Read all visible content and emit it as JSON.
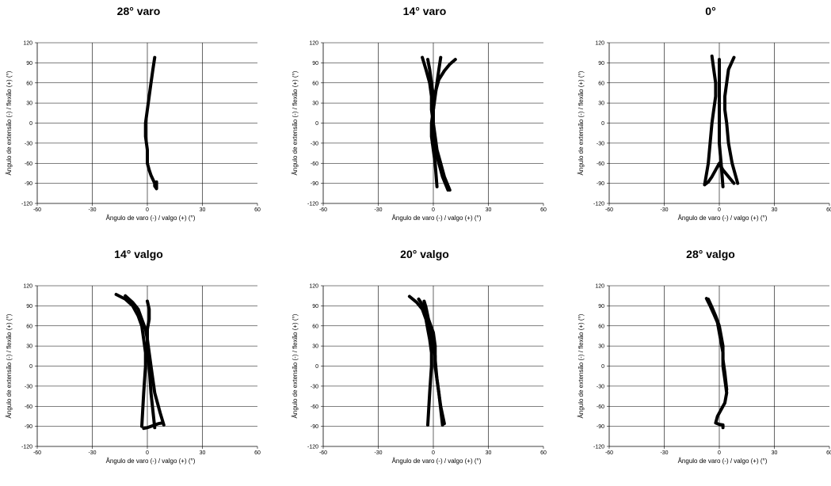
{
  "chart_data": [
    {
      "type": "line",
      "title": "28° varo",
      "xlabel": "Ângulo de varo (-) / valgo (+) (°)",
      "ylabel": "Ângulo de extensão (-) / flexão (+) (°)",
      "xlim": [
        -60,
        60
      ],
      "ylim": [
        -120,
        120
      ],
      "xticks": [
        -60,
        -30,
        0,
        30,
        60
      ],
      "yticks": [
        -120,
        -90,
        -60,
        -30,
        0,
        30,
        60,
        90,
        120
      ],
      "grid": true,
      "series": [
        {
          "x": [
            4,
            3,
            2,
            1,
            0,
            -1,
            -1,
            0,
            0,
            1,
            2,
            3,
            4,
            4,
            5,
            5,
            5
          ],
          "y": [
            98,
            80,
            60,
            40,
            20,
            0,
            -20,
            -40,
            -60,
            -70,
            -78,
            -84,
            -90,
            -94,
            -98,
            -94,
            -88
          ]
        }
      ]
    },
    {
      "type": "line",
      "title": "14° varo",
      "xlabel": "Ângulo de varo (-) / valgo (+) (°)",
      "ylabel": "Ângulo de extensão (-) / flexão (+) (°)",
      "xlim": [
        -60,
        60
      ],
      "ylim": [
        -120,
        120
      ],
      "xticks": [
        -60,
        -30,
        0,
        30,
        60
      ],
      "yticks": [
        -120,
        -90,
        -60,
        -30,
        0,
        30,
        60,
        90,
        120
      ],
      "grid": true,
      "series": [
        {
          "x": [
            -6,
            -4,
            -2,
            -1,
            -1,
            0,
            0,
            1,
            3,
            5,
            8
          ],
          "y": [
            98,
            80,
            60,
            40,
            20,
            0,
            -20,
            -40,
            -60,
            -80,
            -100
          ]
        },
        {
          "x": [
            4,
            3,
            2,
            1,
            0,
            0,
            1,
            2,
            4,
            6,
            9
          ],
          "y": [
            98,
            80,
            60,
            40,
            20,
            0,
            -20,
            -40,
            -60,
            -80,
            -100
          ]
        },
        {
          "x": [
            12,
            9,
            6,
            3,
            1,
            0
          ],
          "y": [
            95,
            88,
            78,
            65,
            45,
            20
          ]
        },
        {
          "x": [
            -3,
            -2,
            -1,
            0,
            0,
            -1,
            -1,
            0,
            1,
            2
          ],
          "y": [
            95,
            80,
            60,
            40,
            20,
            0,
            -20,
            -40,
            -60,
            -95
          ]
        }
      ]
    },
    {
      "type": "line",
      "title": "0°",
      "xlabel": "Ângulo de varo (-) / valgo (+) (°)",
      "ylabel": "Ângulo de extensão (-) / flexão (+) (°)",
      "xlim": [
        -60,
        60
      ],
      "ylim": [
        -120,
        120
      ],
      "xticks": [
        -60,
        -30,
        0,
        30,
        60
      ],
      "yticks": [
        -120,
        -90,
        -60,
        -30,
        0,
        30,
        60,
        90,
        120
      ],
      "grid": true,
      "series": [
        {
          "x": [
            -4,
            -3,
            -2,
            -2,
            -3,
            -4,
            -5,
            -6,
            -8
          ],
          "y": [
            100,
            80,
            60,
            40,
            20,
            0,
            -30,
            -60,
            -92
          ]
        },
        {
          "x": [
            8,
            5,
            4,
            3,
            3,
            4,
            5,
            7,
            10
          ],
          "y": [
            98,
            80,
            60,
            40,
            20,
            0,
            -30,
            -60,
            -90
          ]
        },
        {
          "x": [
            0,
            0,
            0,
            0,
            0,
            0,
            0,
            1,
            2
          ],
          "y": [
            95,
            80,
            60,
            40,
            20,
            0,
            -30,
            -60,
            -95
          ]
        },
        {
          "x": [
            -8,
            -6,
            -4,
            -2,
            0,
            2,
            5,
            8
          ],
          "y": [
            -92,
            -88,
            -80,
            -70,
            -60,
            -70,
            -80,
            -90
          ]
        }
      ]
    },
    {
      "type": "line",
      "title": "14° valgo",
      "xlabel": "Ângulo de varo (-) / valgo (+) (°)",
      "ylabel": "Ângulo de extensão (-) / flexão (+) (°)",
      "xlim": [
        -60,
        60
      ],
      "ylim": [
        -120,
        120
      ],
      "xticks": [
        -60,
        -30,
        0,
        30,
        60
      ],
      "yticks": [
        -120,
        -90,
        -60,
        -30,
        0,
        30,
        60,
        90,
        120
      ],
      "grid": true,
      "series": [
        {
          "x": [
            -17,
            -12,
            -8,
            -5,
            -3,
            -2,
            -1,
            -1,
            -2,
            -3
          ],
          "y": [
            107,
            100,
            90,
            75,
            60,
            40,
            20,
            0,
            -40,
            -90
          ]
        },
        {
          "x": [
            -12,
            -8,
            -5,
            -3,
            -1,
            0,
            0,
            1,
            2,
            4
          ],
          "y": [
            105,
            95,
            85,
            70,
            55,
            40,
            20,
            0,
            -40,
            -92
          ]
        },
        {
          "x": [
            0,
            1,
            1,
            0,
            0,
            1,
            2,
            4,
            7,
            9
          ],
          "y": [
            97,
            85,
            70,
            55,
            40,
            20,
            0,
            -40,
            -70,
            -88
          ]
        },
        {
          "x": [
            -2,
            0,
            2,
            4,
            6,
            8
          ],
          "y": [
            -93,
            -92,
            -90,
            -88,
            -86,
            -85
          ]
        }
      ]
    },
    {
      "type": "line",
      "title": "20° valgo",
      "xlabel": "Ângulo de varo (-) / valgo (+) (°)",
      "ylabel": "Ângulo de extensão (-) / flexão (+) (°)",
      "xlim": [
        -60,
        60
      ],
      "ylim": [
        -120,
        120
      ],
      "xticks": [
        -60,
        -30,
        0,
        30,
        60
      ],
      "yticks": [
        -120,
        -90,
        -60,
        -30,
        0,
        30,
        60,
        90,
        120
      ],
      "grid": true,
      "series": [
        {
          "x": [
            -13,
            -9,
            -6,
            -4,
            -3,
            -2,
            -1,
            -1,
            -2,
            -3
          ],
          "y": [
            104,
            95,
            85,
            70,
            55,
            40,
            20,
            0,
            -40,
            -88
          ]
        },
        {
          "x": [
            -5,
            -4,
            -3,
            -2,
            -1,
            0,
            1,
            1,
            3,
            5
          ],
          "y": [
            97,
            88,
            75,
            60,
            45,
            30,
            15,
            0,
            -40,
            -88
          ]
        },
        {
          "x": [
            -8,
            -6,
            -4,
            -2,
            0,
            1,
            1,
            2,
            4,
            6
          ],
          "y": [
            100,
            92,
            80,
            65,
            50,
            30,
            10,
            -20,
            -60,
            -86
          ]
        }
      ]
    },
    {
      "type": "line",
      "title": "28° valgo",
      "xlabel": "Ângulo de varo (-) / valgo (+) (°)",
      "ylabel": "Ângulo de extensão (-) / flexão (+) (°)",
      "xlim": [
        -60,
        60
      ],
      "ylim": [
        -120,
        120
      ],
      "xticks": [
        -60,
        -30,
        0,
        30,
        60
      ],
      "yticks": [
        -120,
        -90,
        -60,
        -30,
        0,
        30,
        60,
        90,
        120
      ],
      "grid": true,
      "series": [
        {
          "x": [
            -7,
            -5,
            -3,
            -1,
            0,
            1,
            2,
            2,
            3,
            4,
            3,
            1,
            -1,
            -2,
            0,
            2,
            2
          ],
          "y": [
            101,
            90,
            78,
            65,
            50,
            35,
            20,
            0,
            -20,
            -40,
            -55,
            -65,
            -75,
            -85,
            -87,
            -88,
            -92
          ]
        },
        {
          "x": [
            -6,
            -4,
            -2,
            0,
            1,
            2,
            2,
            3,
            4
          ],
          "y": [
            100,
            88,
            75,
            60,
            45,
            30,
            10,
            -10,
            -35
          ]
        }
      ]
    }
  ]
}
